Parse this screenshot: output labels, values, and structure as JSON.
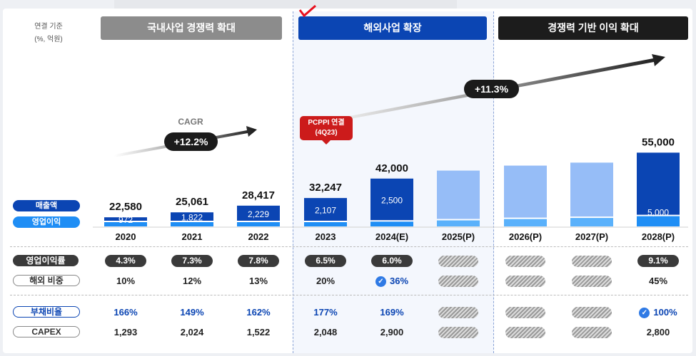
{
  "unit_note": [
    "연결 기준",
    "(%, 억원)"
  ],
  "banners": [
    "국내사업 경쟁력 확대",
    "해외사업 확장",
    "경쟁력 기반 이익 확대"
  ],
  "cagr_label": "CAGR",
  "cagr_1": "+12.2%",
  "cagr_2": "+11.3%",
  "callout": [
    "PCPPI 연결",
    "(4Q23)"
  ],
  "legend": {
    "revenue": "매출액",
    "op": "영업이익"
  },
  "row_labels": {
    "margin": "영업이익률",
    "overseas": "해외 비중",
    "debt": "부채비율",
    "capex": "CAPEX"
  },
  "rows": {
    "margin": [
      "4.3%",
      "7.3%",
      "7.8%",
      "6.5%",
      "6.0%",
      "",
      "",
      "",
      "9.1%"
    ],
    "overseas": [
      "10%",
      "12%",
      "13%",
      "20%",
      "36%",
      "",
      "",
      "",
      "45%"
    ],
    "debt": [
      "166%",
      "149%",
      "162%",
      "177%",
      "169%",
      "",
      "",
      "",
      "100%"
    ],
    "capex": [
      "1,293",
      "2,024",
      "1,522",
      "2,048",
      "2,900",
      "",
      "",
      "",
      "2,800"
    ]
  },
  "colors": {
    "revenue_actual": "#0b45b3",
    "revenue_projection": "#96bdf7",
    "op_profit": "#1f8ef5",
    "op_profit_projection": "#5ab1fb",
    "banner_domestic": "#8c8c8c",
    "banner_overseas": "#0b45b3",
    "banner_profit": "#1c1c1c"
  },
  "chart_data": {
    "type": "bar",
    "categories": [
      "2020",
      "2021",
      "2022",
      "2023",
      "2024(E)",
      "2025(P)",
      "2026(P)",
      "2027(P)",
      "2028(P)"
    ],
    "series": [
      {
        "name": "매출액",
        "values": [
          22580,
          25061,
          28417,
          32247,
          42000,
          null,
          null,
          null,
          55000
        ],
        "labels": [
          "22,580",
          "25,061",
          "28,417",
          "32,247",
          "42,000",
          "",
          "",
          "",
          "55,000"
        ]
      },
      {
        "name": "영업이익",
        "values": [
          972,
          1822,
          2229,
          2107,
          2500,
          null,
          null,
          null,
          5000
        ],
        "labels": [
          "972",
          "1,822",
          "2,229",
          "2,107",
          "2,500",
          "",
          "",
          "",
          "5,000"
        ]
      }
    ],
    "undisclosed_revenue_estimate": [
      null,
      null,
      null,
      null,
      null,
      46000,
      48500,
      50000,
      null
    ],
    "undisclosed_op_estimate": [
      null,
      null,
      null,
      null,
      null,
      3100,
      3700,
      4200,
      null
    ]
  }
}
